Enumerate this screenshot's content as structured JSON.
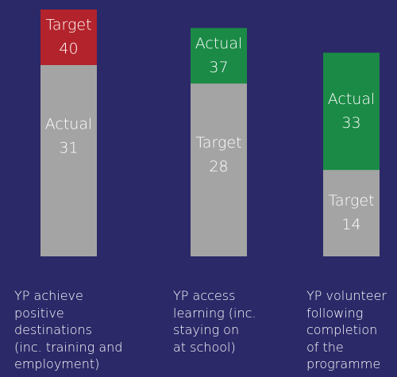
{
  "chart_data": {
    "type": "overlap-bar",
    "categories": [
      "YP achieve\npositive\ndestinations\n(inc. training and\nemployment)",
      "YP access\nlearning (inc.\nstaying on\nat school)",
      "YP volunteer\nfollowing\ncompletion\nof the\nprogramme"
    ],
    "series": [
      {
        "name": "Target",
        "values": [
          40,
          28,
          14
        ],
        "colors": [
          "#b3232b",
          "#a4a4a4",
          "#a4a4a4"
        ]
      },
      {
        "name": "Actual",
        "values": [
          31,
          37,
          33
        ],
        "colors": [
          "#a4a4a4",
          "#1b8a46",
          "#1b8a46"
        ]
      }
    ],
    "ylim": [
      0,
      40
    ]
  }
}
